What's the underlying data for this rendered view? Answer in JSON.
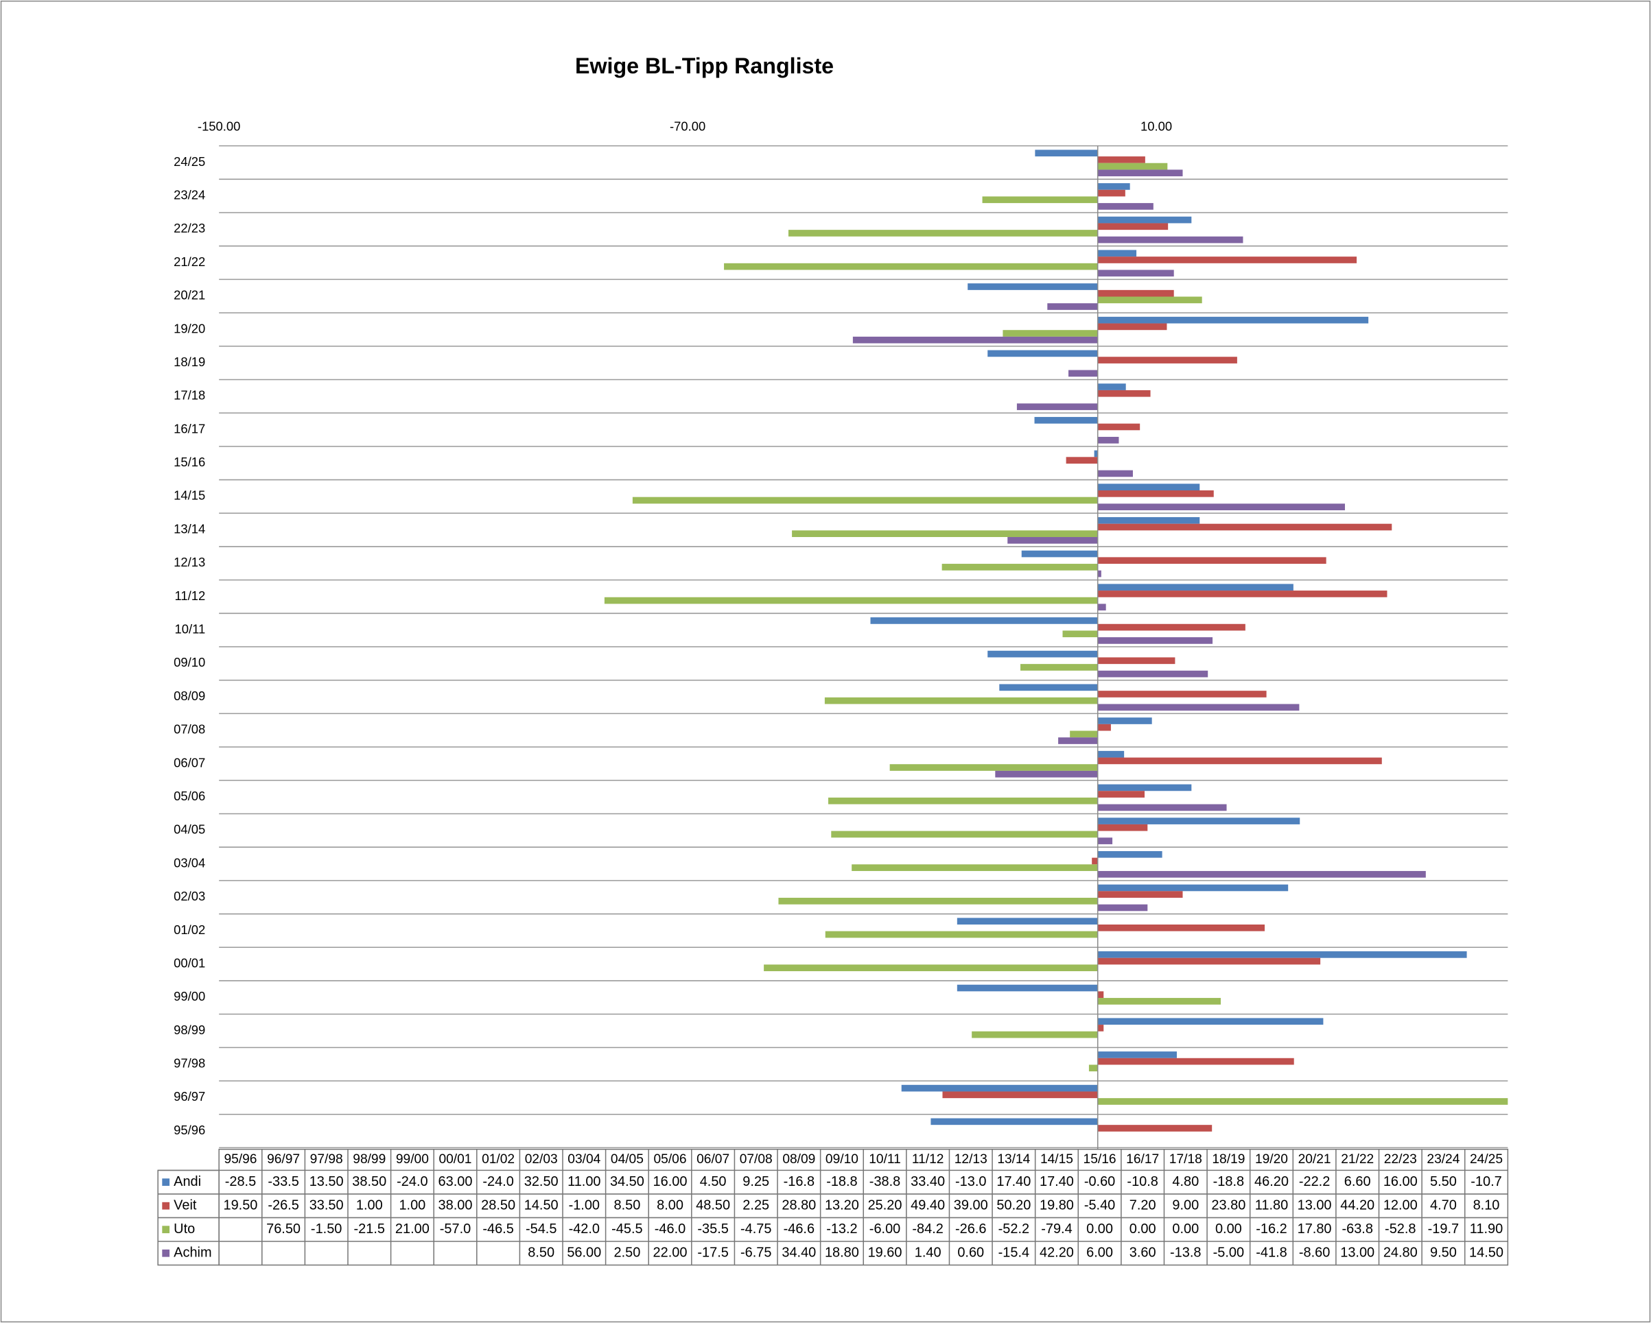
{
  "chart_data": {
    "type": "bar",
    "orientation": "horizontal",
    "title": "Ewige BL-Tipp Rangliste",
    "categories": [
      "95/96",
      "96/97",
      "97/98",
      "98/99",
      "99/00",
      "00/01",
      "01/02",
      "02/03",
      "03/04",
      "04/05",
      "05/06",
      "06/07",
      "07/08",
      "08/09",
      "09/10",
      "10/11",
      "11/12",
      "12/13",
      "13/14",
      "14/15",
      "15/16",
      "16/17",
      "17/18",
      "18/19",
      "19/20",
      "20/21",
      "21/22",
      "22/23",
      "23/24",
      "24/25"
    ],
    "series": [
      {
        "name": "Andi",
        "color": "#4f81bd",
        "values": [
          -28.5,
          -33.5,
          13.5,
          38.5,
          -24,
          63,
          -24,
          32.5,
          11,
          34.5,
          16,
          4.5,
          9.25,
          -16.8,
          -18.8,
          -38.8,
          33.4,
          -13,
          17.4,
          17.4,
          -0.6,
          -10.8,
          4.8,
          -18.8,
          46.2,
          -22.2,
          6.6,
          16,
          5.5,
          -10.7
        ],
        "value_labels": [
          "-28.5",
          "-33.5",
          "13.50",
          "38.50",
          "-24.0",
          "63.00",
          "-24.0",
          "32.50",
          "11.00",
          "34.50",
          "16.00",
          "4.50",
          "9.25",
          "-16.8",
          "-18.8",
          "-38.8",
          "33.40",
          "-13.0",
          "17.40",
          "17.40",
          "-0.60",
          "-10.8",
          "4.80",
          "-18.8",
          "46.20",
          "-22.2",
          "6.60",
          "16.00",
          "5.50",
          "-10.7"
        ]
      },
      {
        "name": "Veit",
        "color": "#c0504d",
        "values": [
          19.5,
          -26.5,
          33.5,
          1,
          1,
          38,
          28.5,
          14.5,
          -1,
          8.5,
          8,
          48.5,
          2.25,
          28.8,
          13.2,
          25.2,
          49.4,
          39,
          50.2,
          19.8,
          -5.4,
          7.2,
          9,
          23.8,
          11.8,
          13,
          44.2,
          12,
          4.7,
          8.1
        ],
        "value_labels": [
          "19.50",
          "-26.5",
          "33.50",
          "1.00",
          "1.00",
          "38.00",
          "28.50",
          "14.50",
          "-1.00",
          "8.50",
          "8.00",
          "48.50",
          "2.25",
          "28.80",
          "13.20",
          "25.20",
          "49.40",
          "39.00",
          "50.20",
          "19.80",
          "-5.40",
          "7.20",
          "9.00",
          "23.80",
          "11.80",
          "13.00",
          "44.20",
          "12.00",
          "4.70",
          "8.10"
        ]
      },
      {
        "name": "Uto",
        "color": "#9bbb59",
        "values": [
          null,
          76.5,
          -1.5,
          -21.5,
          21,
          -57,
          -46.5,
          -54.5,
          -42,
          -45.5,
          -46,
          -35.5,
          -4.75,
          -46.6,
          -13.2,
          -6,
          -84.2,
          -26.6,
          -52.2,
          -79.4,
          0,
          0,
          0,
          0,
          -16.2,
          17.8,
          -63.8,
          -52.8,
          -19.7,
          11.9
        ],
        "value_labels": [
          null,
          "76.50",
          "-1.50",
          "-21.5",
          "21.00",
          "-57.0",
          "-46.5",
          "-54.5",
          "-42.0",
          "-45.5",
          "-46.0",
          "-35.5",
          "-4.75",
          "-46.6",
          "-13.2",
          "-6.00",
          "-84.2",
          "-26.6",
          "-52.2",
          "-79.4",
          "0.00",
          "0.00",
          "0.00",
          "0.00",
          "-16.2",
          "17.80",
          "-63.8",
          "-52.8",
          "-19.7",
          "11.90"
        ]
      },
      {
        "name": "Achim",
        "color": "#8064a2",
        "values": [
          null,
          null,
          null,
          null,
          null,
          null,
          null,
          8.5,
          56,
          2.5,
          22,
          -17.5,
          -6.75,
          34.4,
          18.8,
          19.6,
          1.4,
          0.6,
          -15.4,
          42.2,
          6,
          3.6,
          -13.8,
          -5,
          -41.8,
          -8.6,
          13,
          24.8,
          9.5,
          14.5
        ],
        "value_labels": [
          null,
          null,
          null,
          null,
          null,
          null,
          null,
          "8.50",
          "56.00",
          "2.50",
          "22.00",
          "-17.5",
          "-6.75",
          "34.40",
          "18.80",
          "19.60",
          "1.40",
          "0.60",
          "-15.4",
          "42.20",
          "6.00",
          "3.60",
          "-13.8",
          "-5.00",
          "-41.8",
          "-8.60",
          "13.00",
          "24.80",
          "9.50",
          "14.50"
        ]
      }
    ],
    "xlim": [
      -150,
      70
    ],
    "xticks": [
      {
        "value": -150,
        "label": "-150.00"
      },
      {
        "value": -70,
        "label": "-70.00"
      },
      {
        "value": 10,
        "label": "10.00"
      }
    ],
    "grid": true,
    "data_table": true
  }
}
